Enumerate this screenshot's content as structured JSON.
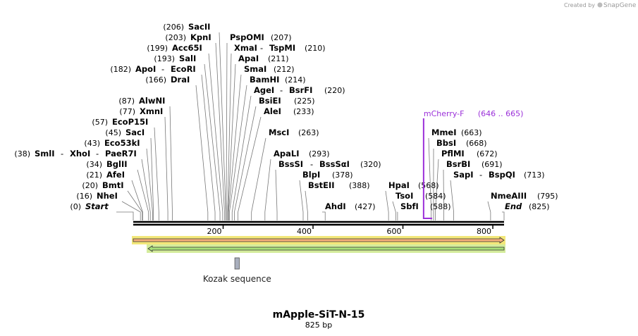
{
  "credit": {
    "prefix": "Created by",
    "brand": "SnapGene"
  },
  "map": {
    "name": "mApple-SiT-N-15",
    "length_label": "825 bp",
    "length_bp": 825,
    "ticks": [
      200,
      400,
      600,
      800
    ]
  },
  "sites": [
    {
      "pos": 0,
      "pos_label": "(0)",
      "names": [
        "Start"
      ],
      "italic": true,
      "side": "left"
    },
    {
      "pos": 16,
      "pos_label": "(16)",
      "names": [
        "NheI"
      ],
      "side": "left"
    },
    {
      "pos": 20,
      "pos_label": "(20)",
      "names": [
        "BmtI"
      ],
      "side": "left"
    },
    {
      "pos": 21,
      "pos_label": "(21)",
      "names": [
        "AfeI"
      ],
      "side": "left"
    },
    {
      "pos": 34,
      "pos_label": "(34)",
      "names": [
        "BglII"
      ],
      "side": "left"
    },
    {
      "pos": 38,
      "pos_label": "(38)",
      "names": [
        "SmlI",
        "XhoI",
        "PaeR7I"
      ],
      "side": "left"
    },
    {
      "pos": 43,
      "pos_label": "(43)",
      "names": [
        "Eco53kI"
      ],
      "side": "left"
    },
    {
      "pos": 45,
      "pos_label": "(45)",
      "names": [
        "SacI"
      ],
      "side": "left"
    },
    {
      "pos": 57,
      "pos_label": "(57)",
      "names": [
        "EcoP15I"
      ],
      "side": "left"
    },
    {
      "pos": 77,
      "pos_label": "(77)",
      "names": [
        "XmnI"
      ],
      "side": "left"
    },
    {
      "pos": 87,
      "pos_label": "(87)",
      "names": [
        "AlwNI"
      ],
      "side": "left"
    },
    {
      "pos": 166,
      "pos_label": "(166)",
      "names": [
        "DraI"
      ],
      "side": "left"
    },
    {
      "pos": 182,
      "pos_label": "(182)",
      "names": [
        "ApoI",
        "EcoRI"
      ],
      "side": "left"
    },
    {
      "pos": 193,
      "pos_label": "(193)",
      "names": [
        "SalI"
      ],
      "side": "left"
    },
    {
      "pos": 199,
      "pos_label": "(199)",
      "names": [
        "Acc65I"
      ],
      "side": "left"
    },
    {
      "pos": 203,
      "pos_label": "(203)",
      "names": [
        "KpnI"
      ],
      "side": "left"
    },
    {
      "pos": 206,
      "pos_label": "(206)",
      "names": [
        "SacII"
      ],
      "side": "left"
    },
    {
      "pos": 207,
      "pos_label": "(207)",
      "names": [
        "PspOMI"
      ],
      "side": "right"
    },
    {
      "pos": 210,
      "pos_label": "(210)",
      "names": [
        "XmaI",
        "TspMI"
      ],
      "side": "right"
    },
    {
      "pos": 211,
      "pos_label": "(211)",
      "names": [
        "ApaI"
      ],
      "side": "right"
    },
    {
      "pos": 212,
      "pos_label": "(212)",
      "names": [
        "SmaI"
      ],
      "side": "right"
    },
    {
      "pos": 214,
      "pos_label": "(214)",
      "names": [
        "BamHI"
      ],
      "side": "right"
    },
    {
      "pos": 220,
      "pos_label": "(220)",
      "names": [
        "AgeI",
        "BsrFI"
      ],
      "side": "right"
    },
    {
      "pos": 225,
      "pos_label": "(225)",
      "names": [
        "BsiEI"
      ],
      "side": "right"
    },
    {
      "pos": 233,
      "pos_label": "(233)",
      "names": [
        "AleI"
      ],
      "side": "right"
    },
    {
      "pos": 263,
      "pos_label": "(263)",
      "names": [
        "MscI"
      ],
      "side": "right"
    },
    {
      "pos": 293,
      "pos_label": "(293)",
      "names": [
        "ApaLI"
      ],
      "side": "right"
    },
    {
      "pos": 320,
      "pos_label": "(320)",
      "names": [
        "BssSI",
        "BssSαI"
      ],
      "side": "right"
    },
    {
      "pos": 378,
      "pos_label": "(378)",
      "names": [
        "BlpI"
      ],
      "side": "right"
    },
    {
      "pos": 388,
      "pos_label": "(388)",
      "names": [
        "BstEII"
      ],
      "side": "right"
    },
    {
      "pos": 427,
      "pos_label": "(427)",
      "names": [
        "AhdI"
      ],
      "side": "right"
    },
    {
      "pos": 568,
      "pos_label": "(568)",
      "names": [
        "HpaI"
      ],
      "side": "right"
    },
    {
      "pos": 584,
      "pos_label": "(584)",
      "names": [
        "TsoI"
      ],
      "side": "right"
    },
    {
      "pos": 588,
      "pos_label": "(588)",
      "names": [
        "SbfI"
      ],
      "side": "right"
    },
    {
      "pos": 663,
      "pos_label": "(663)",
      "names": [
        "MmeI"
      ],
      "side": "right"
    },
    {
      "pos": 668,
      "pos_label": "(668)",
      "names": [
        "BbsI"
      ],
      "side": "right"
    },
    {
      "pos": 672,
      "pos_label": "(672)",
      "names": [
        "PflMI"
      ],
      "side": "right"
    },
    {
      "pos": 691,
      "pos_label": "(691)",
      "names": [
        "BsrBI"
      ],
      "side": "right"
    },
    {
      "pos": 713,
      "pos_label": "(713)",
      "names": [
        "SapI",
        "BspQI"
      ],
      "side": "right"
    },
    {
      "pos": 795,
      "pos_label": "(795)",
      "names": [
        "NmeAIII"
      ],
      "side": "right"
    },
    {
      "pos": 825,
      "pos_label": "(825)",
      "names": [
        "End"
      ],
      "italic": true,
      "side": "right"
    }
  ],
  "primer": {
    "name": "mCherry-F",
    "range_label": "(646 .. 665)",
    "start": 646,
    "end": 665,
    "color": "#9b30d9"
  },
  "features": [
    {
      "name": "orange-arrow",
      "start": 0,
      "end": 825,
      "direction": "forward",
      "fill": "#f7b07a",
      "edge": "#f3e77a"
    },
    {
      "name": "green-arrow",
      "start": 33,
      "end": 825,
      "direction": "reverse",
      "fill": "#a8e07a",
      "edge": "#d4ec9c"
    },
    {
      "name": "Kozak sequence",
      "label": "Kozak sequence",
      "start": 226,
      "end": 236,
      "fill": "#a9afbd"
    }
  ]
}
